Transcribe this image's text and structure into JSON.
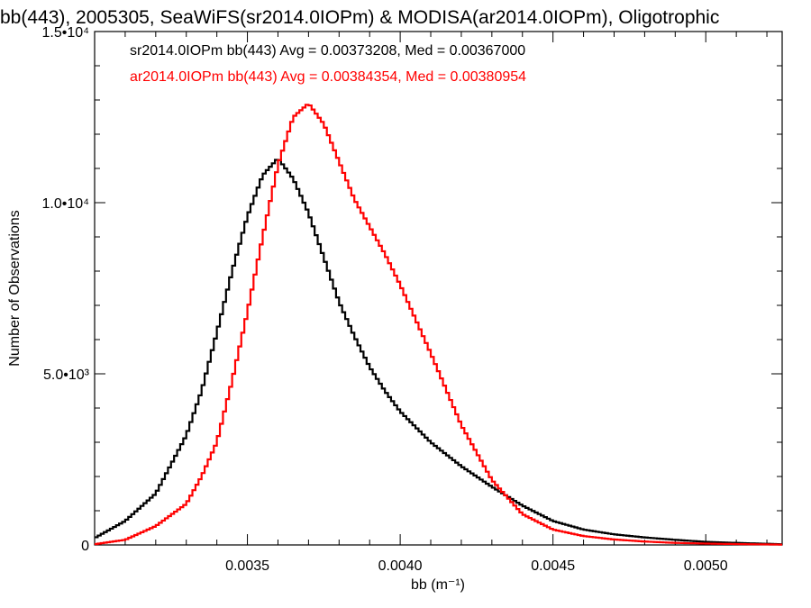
{
  "chart_data": {
    "type": "line",
    "title": "bb(443), 2005305, SeaWiFS(sr2014.0IOPm) & MODISA(ar2014.0IOPm), Oligotrophic",
    "xlabel": "bb (m⁻¹)",
    "ylabel": "Number of Observations",
    "xlim": [
      0.003,
      0.00525
    ],
    "ylim": [
      0,
      15000
    ],
    "x_ticks": [
      {
        "value": 0.0035,
        "label": "0.0035"
      },
      {
        "value": 0.004,
        "label": "0.0040"
      },
      {
        "value": 0.0045,
        "label": "0.0045"
      },
      {
        "value": 0.005,
        "label": "0.0050"
      }
    ],
    "y_ticks": [
      {
        "value": 0,
        "label": "0"
      },
      {
        "value": 5000,
        "label": "5.0•10³"
      },
      {
        "value": 10000,
        "label": "1.0•10⁴"
      },
      {
        "value": 15000,
        "label": "1.5•10⁴"
      }
    ],
    "grid": false,
    "series": [
      {
        "name": "sr2014.0IOPm bb(443) Avg = 0.00373208, Med = 0.00367000",
        "color": "#000000",
        "step": true,
        "x": [
          0.003,
          0.0031,
          0.0032,
          0.0033,
          0.00335,
          0.0034,
          0.00345,
          0.0035,
          0.00355,
          0.0036,
          0.00365,
          0.0037,
          0.00375,
          0.0038,
          0.00385,
          0.0039,
          0.00395,
          0.004,
          0.0041,
          0.0042,
          0.0043,
          0.0044,
          0.0045,
          0.0046,
          0.0047,
          0.0048,
          0.0049,
          0.005,
          0.0051,
          0.00525
        ],
        "y": [
          200,
          700,
          1500,
          3200,
          4500,
          6200,
          8000,
          9600,
          10800,
          11300,
          10700,
          9700,
          8400,
          7100,
          6100,
          5200,
          4500,
          3900,
          3000,
          2300,
          1700,
          1150,
          700,
          450,
          310,
          220,
          150,
          90,
          60,
          20
        ]
      },
      {
        "name": "ar2014.0IOPm bb(443) Avg = 0.00384354, Med = 0.00380954",
        "color": "#ff0000",
        "step": true,
        "x": [
          0.003,
          0.0031,
          0.0032,
          0.0033,
          0.00335,
          0.0034,
          0.00345,
          0.0035,
          0.00355,
          0.0036,
          0.00365,
          0.0037,
          0.00375,
          0.0038,
          0.00385,
          0.0039,
          0.00395,
          0.004,
          0.0041,
          0.0042,
          0.0043,
          0.0044,
          0.0045,
          0.0046,
          0.0047,
          0.0048,
          0.0049,
          0.005,
          0.0051,
          0.00525
        ],
        "y": [
          20,
          150,
          550,
          1200,
          2000,
          3000,
          4800,
          6800,
          9000,
          11100,
          12500,
          12900,
          12300,
          11200,
          10100,
          9300,
          8500,
          7600,
          5600,
          3500,
          1900,
          900,
          450,
          260,
          160,
          100,
          60,
          40,
          25,
          10
        ]
      }
    ]
  }
}
